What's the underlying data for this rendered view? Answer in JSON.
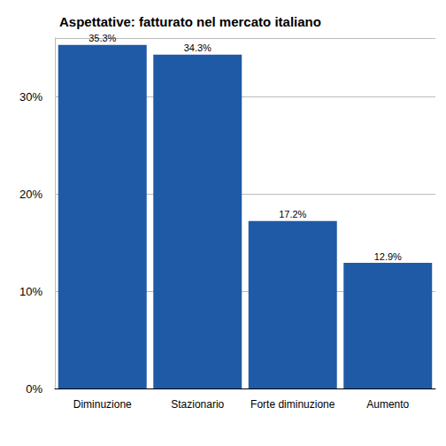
{
  "chart_data": {
    "type": "bar",
    "title": "Aspettative: fatturato nel mercato italiano",
    "categories": [
      "Diminuzione",
      "Stazionario",
      "Forte diminuzione",
      "Aumento"
    ],
    "values": [
      35.3,
      34.3,
      17.2,
      12.9
    ],
    "value_labels": [
      "35.3%",
      "34.3%",
      "17.2%",
      "12.9%"
    ],
    "color": "#1f5aa6",
    "ylim": [
      0,
      36
    ],
    "yticks": [
      {
        "value": 0,
        "label": "0%"
      },
      {
        "value": 10,
        "label": "10%"
      },
      {
        "value": 20,
        "label": "20%"
      },
      {
        "value": 30,
        "label": "30%"
      }
    ],
    "grid": true,
    "data_labels": true
  }
}
